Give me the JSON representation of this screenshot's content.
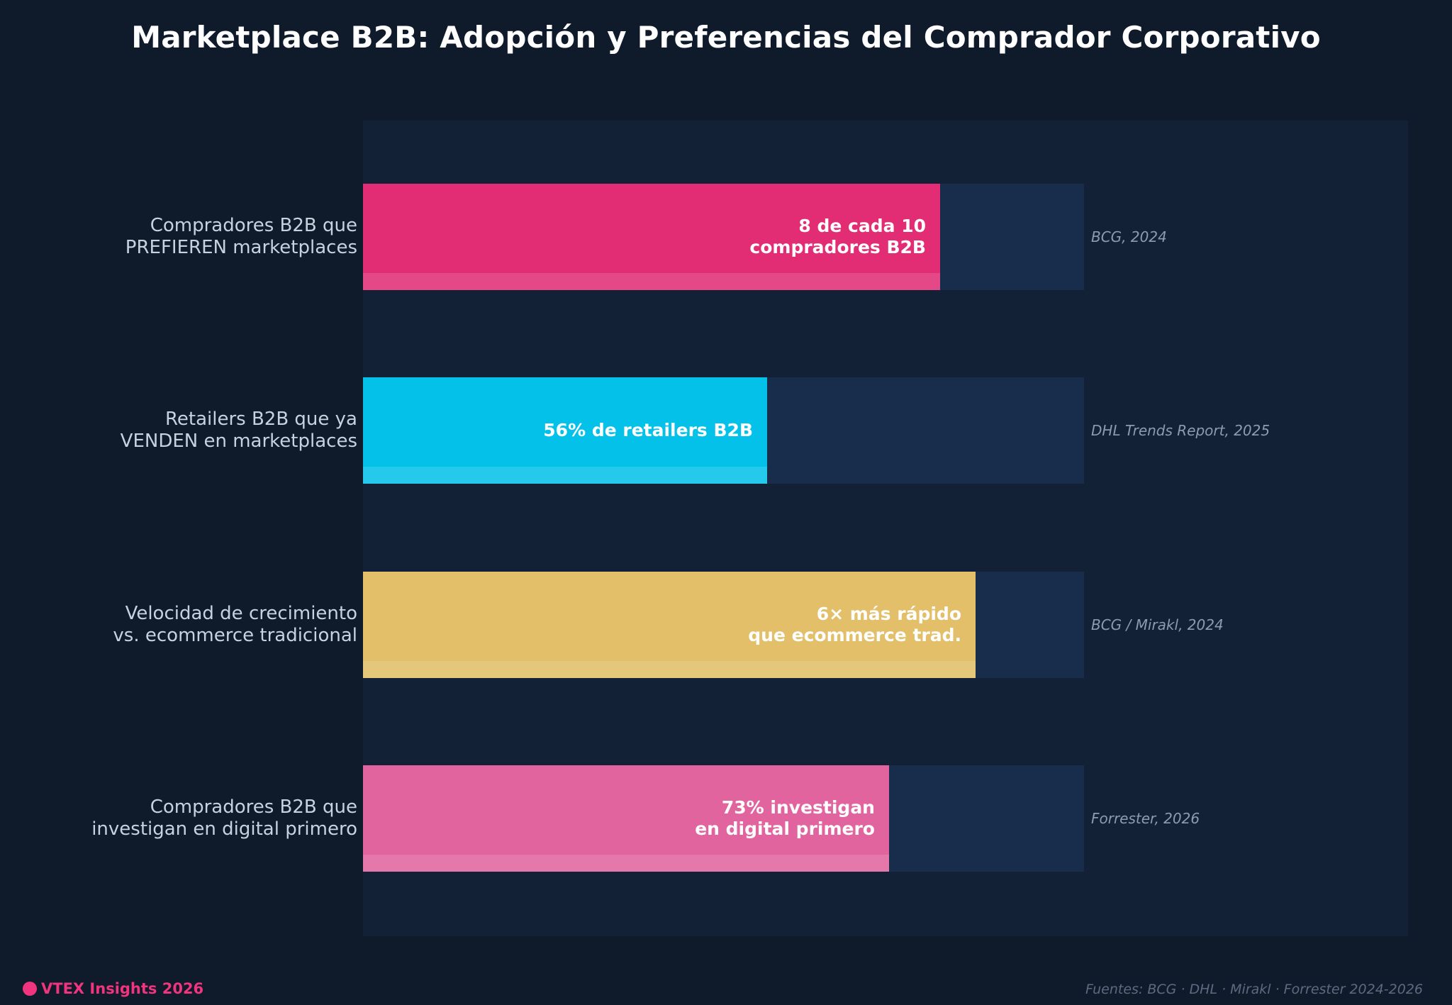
{
  "title": "Marketplace B2B: Adopción y Preferencias del Comprador Corporativo",
  "chart_data": {
    "type": "bar",
    "orientation": "horizontal",
    "title": "Marketplace B2B: Adopción y Preferencias del Comprador Corporativo",
    "xlabel": "",
    "ylabel": "",
    "xlim": [
      0,
      100
    ],
    "grid": false,
    "categories": [
      "Compradores B2B que\nPREFIEREN marketplaces",
      "Retailers B2B que ya\nVENDEN en marketplaces",
      "Velocidad de crecimiento\nvs. ecommerce tradicional",
      "Compradores B2B que\ninvestigan en digital primero"
    ],
    "values": [
      80,
      56,
      85,
      73
    ],
    "bar_labels": [
      "8 de cada 10\ncompradores B2B",
      "56% de retailers B2B",
      "6× más rápido\nque ecommerce trad.",
      "73% investigan\nen digital primero"
    ],
    "sources": [
      "BCG, 2024",
      "DHL Trends Report, 2025",
      "BCG / Mirakl, 2024",
      "Forrester, 2026"
    ],
    "colors": [
      "#e22d75",
      "#04c1e9",
      "#e2bf68",
      "#e2649f"
    ],
    "track_color": "#182d4b"
  },
  "footer": {
    "brand": "VTEX Insights 2026",
    "brand_color": "#f0347e",
    "sources": "Fuentes: BCG · DHL · Mirakl · Forrester 2024-2026"
  }
}
